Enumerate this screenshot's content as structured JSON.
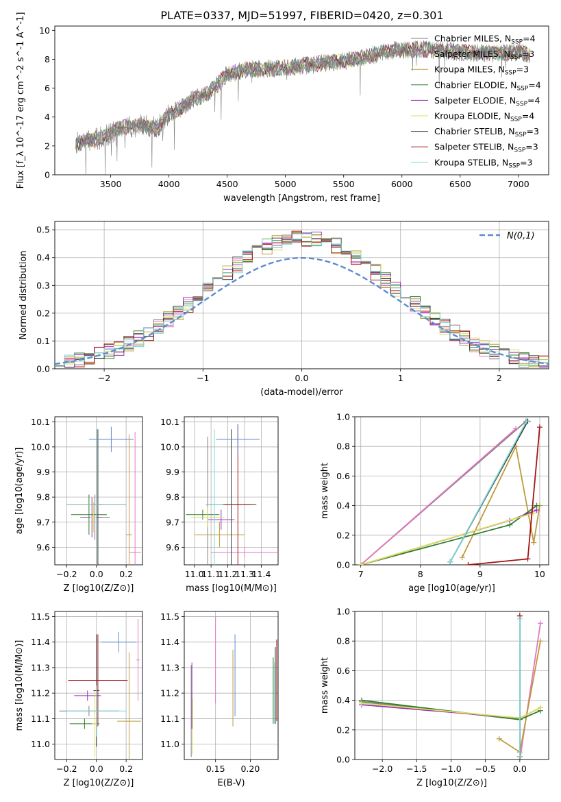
{
  "figure_title": "PLATE=0337, MJD=51997, FIBERID=0420, z=0.301",
  "colors": [
    "#7f7f7f",
    "#e377c2",
    "#bd9a3d",
    "#2c7d2c",
    "#9b30b8",
    "#dbe05b",
    "#333333",
    "#a31414",
    "#7fd6d6"
  ],
  "chart_data": [
    {
      "id": "spectrum",
      "type": "line",
      "xlabel": "wavelength [Angstrom, rest frame]",
      "ylabel": "Flux [f_λ 10^-17 erg cm^-2 s^-1 A^-1]",
      "xlim": [
        3020,
        7260
      ],
      "ylim": [
        0,
        10.3
      ],
      "xticks": [
        3500,
        4000,
        4500,
        5000,
        5500,
        6000,
        6500,
        7000
      ],
      "yticks": [
        0,
        2,
        4,
        6,
        8,
        10
      ],
      "continuum": {
        "x": [
          3200,
          3400,
          3600,
          3800,
          3900,
          4000,
          4100,
          4200,
          4300,
          4400,
          4500,
          4700,
          5000,
          5300,
          5600,
          5900,
          6200,
          6500,
          6800,
          7000,
          7100
        ],
        "y": [
          2.2,
          2.5,
          3.3,
          3.4,
          3.2,
          4.2,
          4.6,
          5.2,
          5.5,
          6.1,
          7.0,
          7.3,
          7.4,
          7.7,
          8.0,
          8.6,
          8.7,
          8.5,
          8.4,
          8.5,
          8.3
        ]
      },
      "legend": [
        {
          "imf": "Chabrier",
          "lib": "MILES",
          "n": "4"
        },
        {
          "imf": "Salpeter",
          "lib": "MILES",
          "n": "3"
        },
        {
          "imf": "Kroupa",
          "lib": "MILES",
          "n": "3"
        },
        {
          "imf": "Chabrier",
          "lib": "ELODIE",
          "n": "4"
        },
        {
          "imf": "Salpeter",
          "lib": "ELODIE",
          "n": "4"
        },
        {
          "imf": "Kroupa",
          "lib": "ELODIE",
          "n": "4"
        },
        {
          "imf": "Chabrier",
          "lib": "STELIB",
          "n": "3"
        },
        {
          "imf": "Salpeter",
          "lib": "STELIB",
          "n": "3"
        },
        {
          "imf": "Kroupa",
          "lib": "STELIB",
          "n": "3"
        }
      ],
      "legend_placement": "upper-right"
    },
    {
      "id": "residuals",
      "type": "histogram",
      "xlabel": "(data-model)/error",
      "ylabel": "Normed distribution",
      "xlim": [
        -2.5,
        2.5
      ],
      "ylim": [
        0,
        0.53
      ],
      "xticks": [
        -2,
        -1,
        0,
        1,
        2
      ],
      "yticks": [
        0.0,
        0.1,
        0.2,
        0.3,
        0.4,
        0.5
      ],
      "bin_edges_step": 0.1,
      "model_label": "N(0,1)",
      "grid": true
    },
    {
      "id": "age_vs_Z",
      "type": "errorbar",
      "xlabel": "Z [log10(Z/Z⊙)]",
      "ylabel": "age [log10(age/yr)]",
      "xlim": [
        -0.28,
        0.31
      ],
      "ylim": [
        9.53,
        10.12
      ],
      "xticks": [
        -0.2,
        0.0,
        0.2
      ],
      "yticks": [
        9.6,
        9.7,
        9.8,
        9.9,
        10.0,
        10.1
      ],
      "points": [
        {
          "x": -0.01,
          "y": 9.72,
          "xerr": 0.1,
          "yerr": 0.09
        },
        {
          "x": 0.26,
          "y": 9.58,
          "xerr": 0.04,
          "yerr": 0.48
        },
        {
          "x": 0.22,
          "y": 9.65,
          "xerr": 0.02,
          "yerr": 0.4
        },
        {
          "x": -0.05,
          "y": 9.73,
          "xerr": 0.12,
          "yerr": 0.08
        },
        {
          "x": -0.03,
          "y": 9.72,
          "xerr": 0.07,
          "yerr": 0.08
        },
        {
          "x": -0.02,
          "y": 9.72,
          "xerr": 0.02,
          "yerr": 0.06
        },
        {
          "x": 0.01,
          "y": 9.77,
          "xerr": 0.03,
          "yerr": 0.3
        },
        {
          "x": 0.0,
          "y": 9.77,
          "xerr": 0.2,
          "yerr": 0.3
        },
        {
          "x": 0.0,
          "y": 9.77,
          "xerr": 0.2,
          "yerr": 0.3
        },
        {
          "x": 0.1,
          "y": 10.03,
          "xerr": 0.15,
          "yerr": 0.05
        }
      ]
    },
    {
      "id": "age_vs_mass",
      "type": "errorbar",
      "xlabel": "mass [log10(M/M⊙)]",
      "ylabel": "",
      "xlim": [
        10.94,
        11.5
      ],
      "ylim": [
        9.53,
        10.12
      ],
      "xticks": [
        11.0,
        11.1,
        11.2,
        11.3,
        11.4
      ],
      "yticks": [
        9.6,
        9.7,
        9.8,
        9.9,
        10.0,
        10.1
      ],
      "points": [
        {
          "x": 11.08,
          "y": 9.72,
          "xerr": 0.06,
          "yerr": 0.32
        },
        {
          "x": 11.3,
          "y": 9.58,
          "xerr": 0.2,
          "yerr": 0.02
        },
        {
          "x": 11.15,
          "y": 9.65,
          "xerr": 0.15,
          "yerr": 0.05
        },
        {
          "x": 11.05,
          "y": 9.73,
          "xerr": 0.1,
          "yerr": 0.02
        },
        {
          "x": 11.16,
          "y": 9.71,
          "xerr": 0.08,
          "yerr": 0.04
        },
        {
          "x": 11.08,
          "y": 9.72,
          "xerr": 0.1,
          "yerr": 0.04
        },
        {
          "x": 11.22,
          "y": 9.77,
          "xerr": 0.15,
          "yerr": 0.3
        },
        {
          "x": 11.26,
          "y": 9.77,
          "xerr": 0.08,
          "yerr": 0.32
        },
        {
          "x": 11.12,
          "y": 9.77,
          "xerr": 0.05,
          "yerr": 0.3
        },
        {
          "x": 11.26,
          "y": 10.03,
          "xerr": 0.13,
          "yerr": 0.06
        }
      ]
    },
    {
      "id": "weight_vs_age",
      "type": "line",
      "xlabel": "age [log10(age/yr)]",
      "ylabel": "mass weight",
      "xlim": [
        6.9,
        10.15
      ],
      "ylim": [
        0,
        1.0
      ],
      "xticks": [
        7,
        8,
        9,
        10
      ],
      "yticks": [
        0.0,
        0.2,
        0.4,
        0.6,
        0.8,
        1.0
      ],
      "series": [
        {
          "x": [
            7.0,
            9.77
          ],
          "y": [
            0.0,
            0.97
          ]
        },
        {
          "x": [
            7.0,
            9.6
          ],
          "y": [
            0.0,
            0.92
          ]
        },
        {
          "x": [
            8.7,
            9.6,
            9.9,
            10.0
          ],
          "y": [
            0.05,
            0.8,
            0.15,
            0.4
          ]
        },
        {
          "x": [
            7.0,
            9.5,
            9.95
          ],
          "y": [
            0.0,
            0.27,
            0.4
          ]
        },
        {
          "x": [
            7.0,
            9.5,
            9.95
          ],
          "y": [
            0.0,
            0.3,
            0.37
          ]
        },
        {
          "x": [
            7.0,
            9.9
          ],
          "y": [
            0.0,
            0.35
          ]
        },
        {
          "x": [
            8.5,
            9.8
          ],
          "y": [
            0.02,
            0.97
          ]
        },
        {
          "x": [
            8.8,
            9.8,
            10.0
          ],
          "y": [
            0.0,
            0.04,
            0.93
          ]
        },
        {
          "x": [
            8.5,
            9.78
          ],
          "y": [
            0.02,
            0.97
          ]
        }
      ]
    },
    {
      "id": "mass_vs_Z",
      "type": "errorbar",
      "xlabel": "Z [log10(Z/Z⊙)]",
      "ylabel": "mass [log10(M/M⊙)]",
      "xlim": [
        -0.28,
        0.31
      ],
      "ylim": [
        10.94,
        11.52
      ],
      "xticks": [
        -0.2,
        0.0,
        0.2
      ],
      "yticks": [
        11.0,
        11.1,
        11.2,
        11.3,
        11.4,
        11.5
      ],
      "points": [
        {
          "x": -0.05,
          "y": 11.13,
          "xerr": 0.2,
          "yerr": 0.02
        },
        {
          "x": 0.28,
          "y": 11.33,
          "xerr": 0.01,
          "yerr": 0.16
        },
        {
          "x": 0.22,
          "y": 11.09,
          "xerr": 0.08,
          "yerr": 0.27
        },
        {
          "x": -0.08,
          "y": 11.08,
          "xerr": 0.1,
          "yerr": 0.02
        },
        {
          "x": -0.06,
          "y": 11.19,
          "xerr": 0.09,
          "yerr": 0.02
        },
        {
          "x": -0.01,
          "y": 11.08,
          "xerr": 0.02,
          "yerr": 0.13
        },
        {
          "x": 0.0,
          "y": 11.21,
          "xerr": 0.02,
          "yerr": 0.22
        },
        {
          "x": 0.01,
          "y": 11.25,
          "xerr": 0.2,
          "yerr": 0.18
        },
        {
          "x": 0.0,
          "y": 11.13,
          "xerr": 0.2,
          "yerr": 0.1
        },
        {
          "x": 0.15,
          "y": 11.4,
          "xerr": 0.12,
          "yerr": 0.04
        }
      ]
    },
    {
      "id": "mass_vs_EBV",
      "type": "errorbar",
      "xlabel": "E(B-V)",
      "ylabel": "",
      "xlim": [
        0.105,
        0.24
      ],
      "ylim": [
        10.94,
        11.52
      ],
      "xticks": [
        0.15,
        0.2
      ],
      "yticks": [
        11.0,
        11.1,
        11.2,
        11.3,
        11.4,
        11.5
      ],
      "points": [
        {
          "x": 0.115,
          "y": 11.13,
          "xerr": 0.0,
          "yerr": 0.18
        },
        {
          "x": 0.15,
          "y": 11.33,
          "xerr": 0.0,
          "yerr": 0.17
        },
        {
          "x": 0.175,
          "y": 11.22,
          "xerr": 0.0,
          "yerr": 0.15
        },
        {
          "x": 0.233,
          "y": 11.21,
          "xerr": 0.0,
          "yerr": 0.13
        },
        {
          "x": 0.116,
          "y": 11.19,
          "xerr": 0.0,
          "yerr": 0.13
        },
        {
          "x": 0.117,
          "y": 11.07,
          "xerr": 0.0,
          "yerr": 0.11
        },
        {
          "x": 0.236,
          "y": 11.23,
          "xerr": 0.0,
          "yerr": 0.15
        },
        {
          "x": 0.238,
          "y": 11.25,
          "xerr": 0.0,
          "yerr": 0.16
        },
        {
          "x": 0.235,
          "y": 11.2,
          "xerr": 0.0,
          "yerr": 0.12
        },
        {
          "x": 0.178,
          "y": 11.27,
          "xerr": 0.0,
          "yerr": 0.16
        }
      ]
    },
    {
      "id": "weight_vs_Z",
      "type": "line",
      "xlabel": "Z [log10(Z/Z⊙)]",
      "ylabel": "mass weight",
      "xlim": [
        -2.4,
        0.42
      ],
      "ylim": [
        0,
        1.0
      ],
      "xticks": [
        -2.0,
        -1.5,
        -1.0,
        -0.5,
        0.0
      ],
      "yticks": [
        0.0,
        0.2,
        0.4,
        0.6,
        0.8,
        1.0
      ],
      "series": [
        {
          "x": [
            -2.3,
            0.0,
            0.0
          ],
          "y": [
            0.39,
            0.27,
            0.0
          ]
        },
        {
          "x": [
            0.0,
            0.3
          ],
          "y": [
            0.0,
            0.92
          ]
        },
        {
          "x": [
            -0.3,
            0.0,
            0.3
          ],
          "y": [
            0.14,
            0.05,
            0.8
          ]
        },
        {
          "x": [
            -2.3,
            0.0,
            0.3
          ],
          "y": [
            0.4,
            0.27,
            0.33
          ]
        },
        {
          "x": [
            -2.3,
            0.0,
            0.3
          ],
          "y": [
            0.37,
            0.28,
            0.35
          ]
        },
        {
          "x": [
            -2.3,
            0.0,
            0.3
          ],
          "y": [
            0.38,
            0.28,
            0.35
          ]
        },
        {
          "x": [
            0.0,
            0.0
          ],
          "y": [
            0.02,
            0.97
          ]
        },
        {
          "x": [
            0.0,
            0.0
          ],
          "y": [
            0.0,
            0.97
          ]
        },
        {
          "x": [
            0.0,
            0.0
          ],
          "y": [
            0.02,
            0.95
          ]
        }
      ]
    }
  ]
}
